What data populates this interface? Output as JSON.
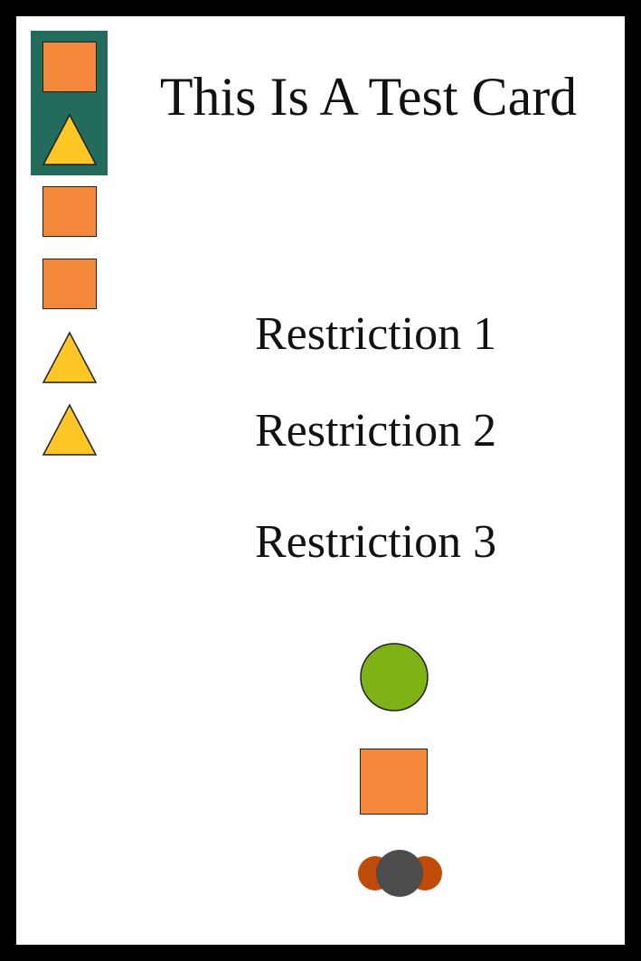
{
  "card": {
    "title": "This Is A Test Card",
    "restrictions": [
      "Restriction 1",
      "Restriction 2",
      "Restriction 3"
    ]
  },
  "sidebar": {
    "highlight_color": "#236b5b",
    "icons": [
      "square-icon",
      "triangle-icon",
      "square-icon",
      "square-icon",
      "triangle-icon",
      "triangle-icon"
    ]
  },
  "cost_icons": [
    "circle-icon",
    "square-icon",
    "token-icon"
  ],
  "colors": {
    "border": "#000000",
    "background": "#ffffff",
    "square": "#f5893b",
    "triangle": "#ffc726",
    "circle": "#7fb217",
    "token_center": "#4c4c4c",
    "token_side": "#bf4a0a"
  }
}
